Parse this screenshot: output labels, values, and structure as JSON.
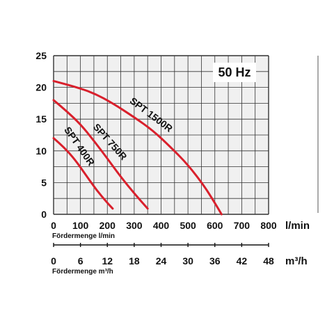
{
  "chart_data": {
    "type": "line",
    "frequency_label": "50 Hz",
    "x": {
      "ticks": [
        "0",
        "100",
        "200",
        "300",
        "400",
        "500",
        "600",
        "700",
        "800"
      ],
      "range": [
        0,
        800
      ],
      "unit": "l/min",
      "label": "Fördermenge l/min"
    },
    "x2": {
      "ticks": [
        "0",
        "6",
        "12",
        "18",
        "24",
        "30",
        "36",
        "42",
        "48"
      ],
      "range": [
        0,
        48
      ],
      "unit": "m³/h",
      "label": "Fördermenge m³/h"
    },
    "y": {
      "ticks": [
        "0",
        "5",
        "10",
        "15",
        "20",
        "25"
      ],
      "range": [
        0,
        25
      ]
    },
    "grid": true,
    "series": [
      {
        "name": "SPT 400R",
        "points": [
          [
            0,
            12
          ],
          [
            40,
            10.5
          ],
          [
            80,
            8.6
          ],
          [
            120,
            6.2
          ],
          [
            160,
            3.8
          ],
          [
            200,
            1.8
          ],
          [
            220,
            0.9
          ]
        ]
      },
      {
        "name": "SPT 750R",
        "points": [
          [
            0,
            18
          ],
          [
            50,
            16.2
          ],
          [
            100,
            14.2
          ],
          [
            150,
            11.6
          ],
          [
            200,
            8.8
          ],
          [
            250,
            5.9
          ],
          [
            300,
            3.3
          ],
          [
            350,
            0.9
          ]
        ]
      },
      {
        "name": "SPT 1500R",
        "points": [
          [
            0,
            21
          ],
          [
            80,
            20.1
          ],
          [
            150,
            19.1
          ],
          [
            220,
            17.5
          ],
          [
            300,
            15.3
          ],
          [
            370,
            13.2
          ],
          [
            440,
            10.4
          ],
          [
            500,
            7.8
          ],
          [
            560,
            4.5
          ],
          [
            600,
            1.8
          ],
          [
            625,
            0
          ]
        ]
      }
    ],
    "colors": {
      "curve": "#d9202c",
      "grid": "#333333",
      "background": "#f0f0f0"
    }
  }
}
